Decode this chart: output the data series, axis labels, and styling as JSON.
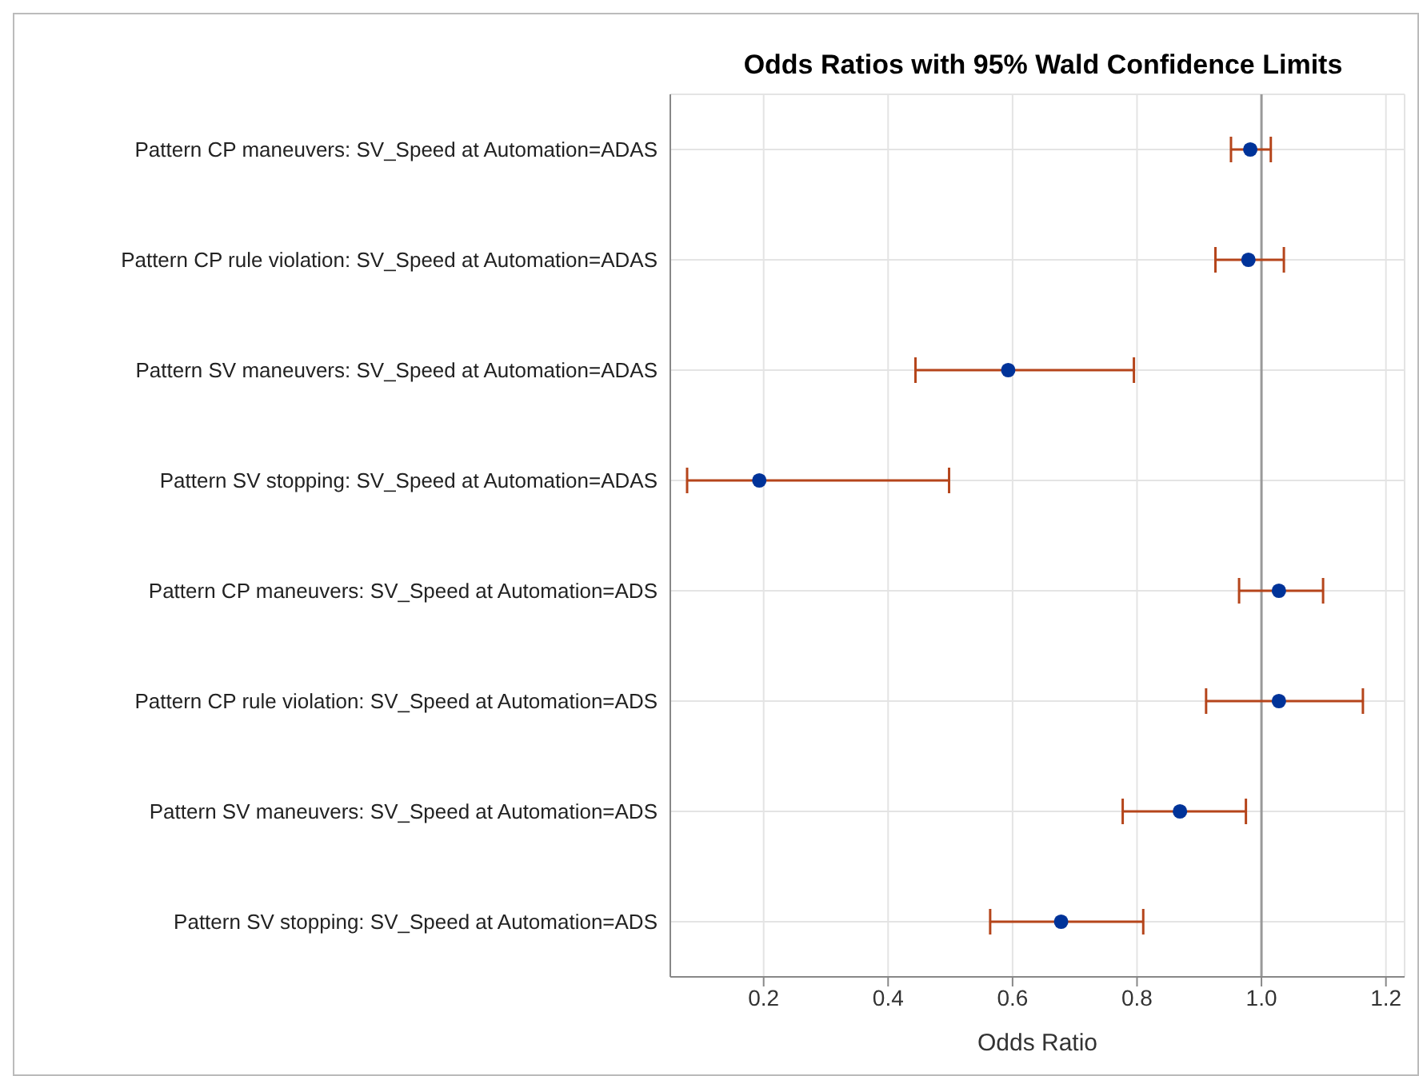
{
  "chart_data": {
    "type": "scatter",
    "orientation": "horizontal",
    "title": "Odds Ratios with 95% Wald Confidence Limits",
    "xlabel": "Odds Ratio",
    "categories": [
      "Pattern CP maneuvers: SV_Speed at Automation=ADAS",
      "Pattern CP rule violation: SV_Speed at Automation=ADAS",
      "Pattern SV maneuvers: SV_Speed at Automation=ADAS",
      "Pattern SV stopping: SV_Speed at Automation=ADAS",
      "Pattern CP maneuvers: SV_Speed at Automation=ADS",
      "Pattern CP rule violation: SV_Speed at Automation=ADS",
      "Pattern SV maneuvers: SV_Speed at Automation=ADS",
      "Pattern SV stopping: SV_Speed at Automation=ADS"
    ],
    "series": [
      {
        "color": "#003399",
        "values": [
          0.982,
          0.979,
          0.593,
          0.193,
          1.028,
          1.028,
          0.869,
          0.678
        ],
        "errors": [
          [
            0.951,
            1.015
          ],
          [
            0.926,
            1.036
          ],
          [
            0.444,
            0.795
          ],
          [
            0.077,
            0.498
          ],
          [
            0.964,
            1.099
          ],
          [
            0.911,
            1.163
          ],
          [
            0.777,
            0.975
          ],
          [
            0.564,
            0.81
          ]
        ]
      }
    ],
    "xlim": [
      0.05,
      1.23
    ],
    "xticks": [
      0.2,
      0.4,
      0.6,
      0.8,
      {
        "value": 1,
        "label": "1.0"
      },
      1.2
    ],
    "ref_lines": [
      {
        "axis": "x",
        "value": 1,
        "color": "#999999"
      }
    ],
    "grid": true,
    "marker": "circle"
  }
}
